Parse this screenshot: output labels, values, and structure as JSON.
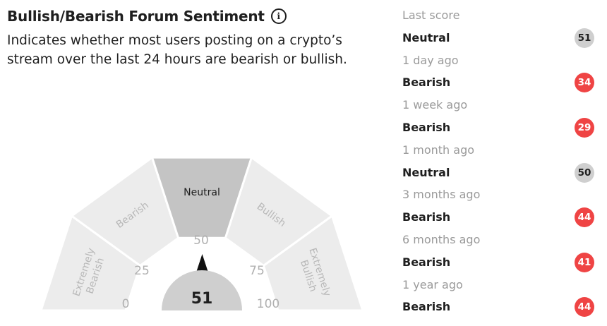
{
  "header": {
    "title": "Bullish/Bearish Forum Sentiment",
    "info_icon": "info-icon",
    "description": "Indicates whether most users posting on a crypto’s stream over the last 24 hours are bearish or bullish."
  },
  "gauge": {
    "score": "51",
    "segments": [
      {
        "label_lines": [
          "Extremely",
          "Bearish"
        ]
      },
      {
        "label_lines": [
          "Bearish"
        ]
      },
      {
        "label_lines": [
          "Neutral"
        ]
      },
      {
        "label_lines": [
          "Bullish"
        ]
      },
      {
        "label_lines": [
          "Extremely",
          "Bullish"
        ]
      }
    ],
    "ticks": [
      "0",
      "25",
      "50",
      "75",
      "100"
    ],
    "active_segment": "Neutral",
    "colors": {
      "inactive": "#ececec",
      "active": "#c4c4c4",
      "needle": "#111111",
      "score_bg": "#cfcfcf"
    }
  },
  "history": [
    {
      "time": "Last score",
      "label": "Neutral",
      "score": "51",
      "color": "#cfcfcf"
    },
    {
      "time": "1 day ago",
      "label": "Bearish",
      "score": "34",
      "color": "#ef4444"
    },
    {
      "time": "1 week ago",
      "label": "Bearish",
      "score": "29",
      "color": "#ef4444"
    },
    {
      "time": "1 month ago",
      "label": "Neutral",
      "score": "50",
      "color": "#cfcfcf"
    },
    {
      "time": "3 months ago",
      "label": "Bearish",
      "score": "44",
      "color": "#ef4444"
    },
    {
      "time": "6 months ago",
      "label": "Bearish",
      "score": "41",
      "color": "#ef4444"
    },
    {
      "time": "1 year ago",
      "label": "Bearish",
      "score": "44",
      "color": "#ef4444"
    }
  ]
}
